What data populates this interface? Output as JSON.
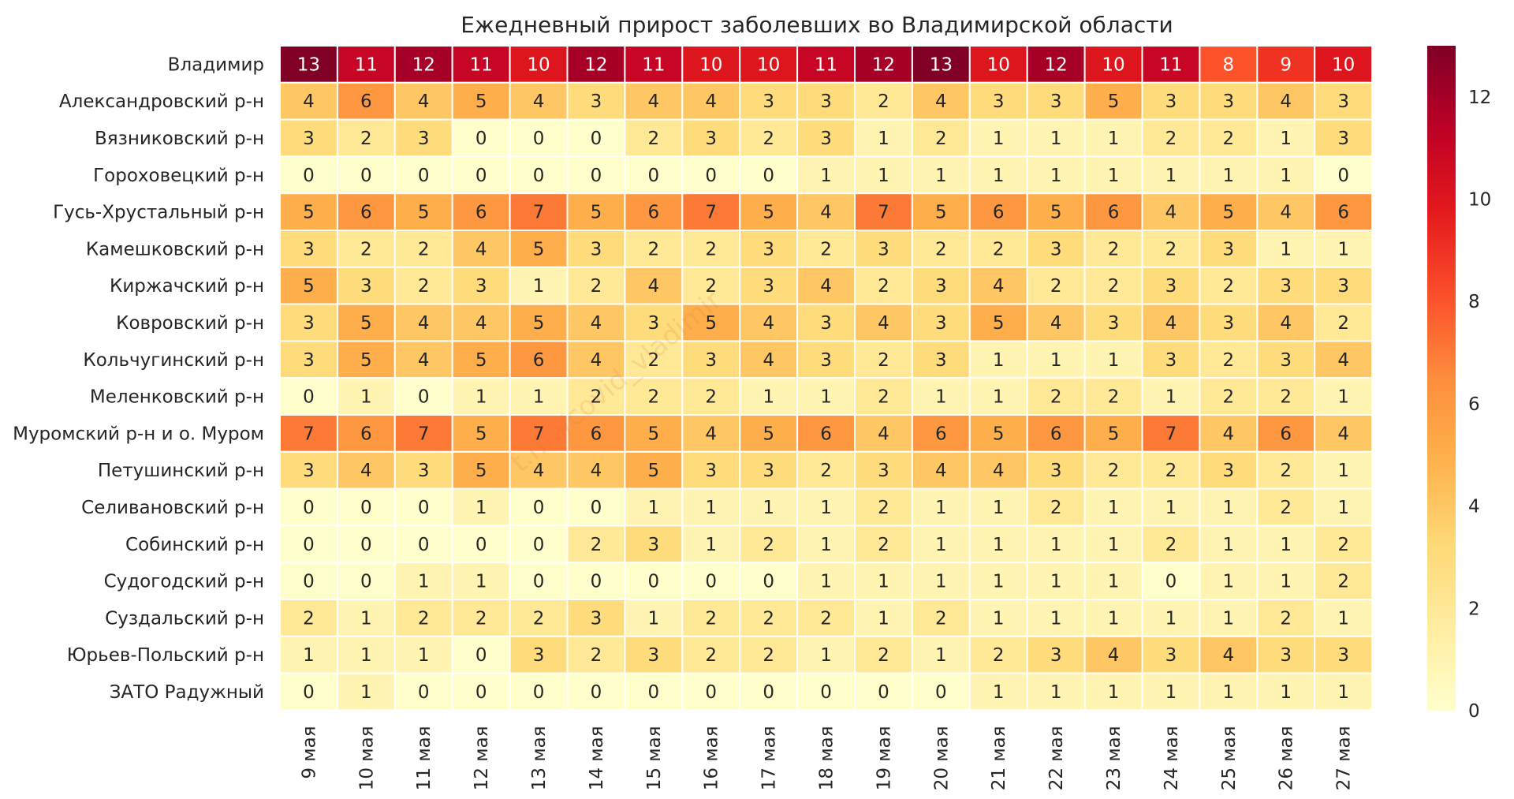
{
  "chart_data": {
    "type": "heatmap",
    "title": "Ежедневный прирост заболевших во Владимирской области",
    "watermark": "t.me/covid_vladimir",
    "colormap": "YlOrRd",
    "vmin": 0,
    "vmax": 13,
    "colorbar_ticks": [
      0,
      2,
      4,
      6,
      8,
      10,
      12
    ],
    "columns": [
      "9 мая",
      "10 мая",
      "11 мая",
      "12 мая",
      "13 мая",
      "14 мая",
      "15 мая",
      "16 мая",
      "17 мая",
      "18 мая",
      "19 мая",
      "20 мая",
      "21 мая",
      "22 мая",
      "23 мая",
      "24 мая",
      "25 мая",
      "26 мая",
      "27 мая"
    ],
    "rows": [
      "Владимир",
      "Александровский р-н",
      "Вязниковский р-н",
      "Гороховецкий р-н",
      "Гусь-Хрустальный р-н",
      "Камешковский р-н",
      "Киржачский р-н",
      "Ковровский р-н",
      "Кольчугинский р-н",
      "Меленковский р-н",
      "Муромский р-н и о. Муром",
      "Петушинский р-н",
      "Селивановский р-н",
      "Собинский р-н",
      "Судогодский р-н",
      "Суздальский р-н",
      "Юрьев-Польский р-н",
      "ЗАТО Радужный"
    ],
    "values": [
      [
        13,
        11,
        12,
        11,
        10,
        12,
        11,
        10,
        10,
        11,
        12,
        13,
        10,
        12,
        10,
        11,
        8,
        9,
        10
      ],
      [
        4,
        6,
        4,
        5,
        4,
        3,
        4,
        4,
        3,
        3,
        2,
        4,
        3,
        3,
        5,
        3,
        3,
        4,
        3
      ],
      [
        3,
        2,
        3,
        0,
        0,
        0,
        2,
        3,
        2,
        3,
        1,
        2,
        1,
        1,
        1,
        2,
        2,
        1,
        3
      ],
      [
        0,
        0,
        0,
        0,
        0,
        0,
        0,
        0,
        0,
        1,
        1,
        1,
        1,
        1,
        1,
        1,
        1,
        1,
        0
      ],
      [
        5,
        6,
        5,
        6,
        7,
        5,
        6,
        7,
        5,
        4,
        7,
        5,
        6,
        5,
        6,
        4,
        5,
        4,
        6
      ],
      [
        3,
        2,
        2,
        4,
        5,
        3,
        2,
        2,
        3,
        2,
        3,
        2,
        2,
        3,
        2,
        2,
        3,
        1,
        1
      ],
      [
        5,
        3,
        2,
        3,
        1,
        2,
        4,
        2,
        3,
        4,
        2,
        3,
        4,
        2,
        2,
        3,
        2,
        3,
        3
      ],
      [
        3,
        5,
        4,
        4,
        5,
        4,
        3,
        5,
        4,
        3,
        4,
        3,
        5,
        4,
        3,
        4,
        3,
        4,
        2
      ],
      [
        3,
        5,
        4,
        5,
        6,
        4,
        2,
        3,
        4,
        3,
        2,
        3,
        1,
        1,
        1,
        3,
        2,
        3,
        4
      ],
      [
        0,
        1,
        0,
        1,
        1,
        2,
        2,
        2,
        1,
        1,
        2,
        1,
        1,
        2,
        2,
        1,
        2,
        2,
        1
      ],
      [
        7,
        6,
        7,
        5,
        7,
        6,
        5,
        4,
        5,
        6,
        4,
        6,
        5,
        6,
        5,
        7,
        4,
        6,
        4
      ],
      [
        3,
        4,
        3,
        5,
        4,
        4,
        5,
        3,
        3,
        2,
        3,
        4,
        4,
        3,
        2,
        2,
        3,
        2,
        1
      ],
      [
        0,
        0,
        0,
        1,
        0,
        0,
        1,
        1,
        1,
        1,
        2,
        1,
        1,
        2,
        1,
        1,
        1,
        2,
        1
      ],
      [
        0,
        0,
        0,
        0,
        0,
        2,
        3,
        1,
        2,
        1,
        2,
        1,
        1,
        1,
        1,
        2,
        1,
        1,
        2
      ],
      [
        0,
        0,
        1,
        1,
        0,
        0,
        0,
        0,
        0,
        1,
        1,
        1,
        1,
        1,
        1,
        0,
        1,
        1,
        2
      ],
      [
        2,
        1,
        2,
        2,
        2,
        3,
        1,
        2,
        2,
        2,
        1,
        2,
        1,
        1,
        1,
        1,
        1,
        2,
        1
      ],
      [
        1,
        1,
        1,
        0,
        3,
        2,
        3,
        2,
        2,
        1,
        2,
        1,
        2,
        3,
        4,
        3,
        4,
        3,
        3
      ],
      [
        0,
        1,
        0,
        0,
        0,
        0,
        0,
        0,
        0,
        0,
        0,
        0,
        1,
        1,
        1,
        1,
        1,
        1,
        1
      ]
    ]
  }
}
